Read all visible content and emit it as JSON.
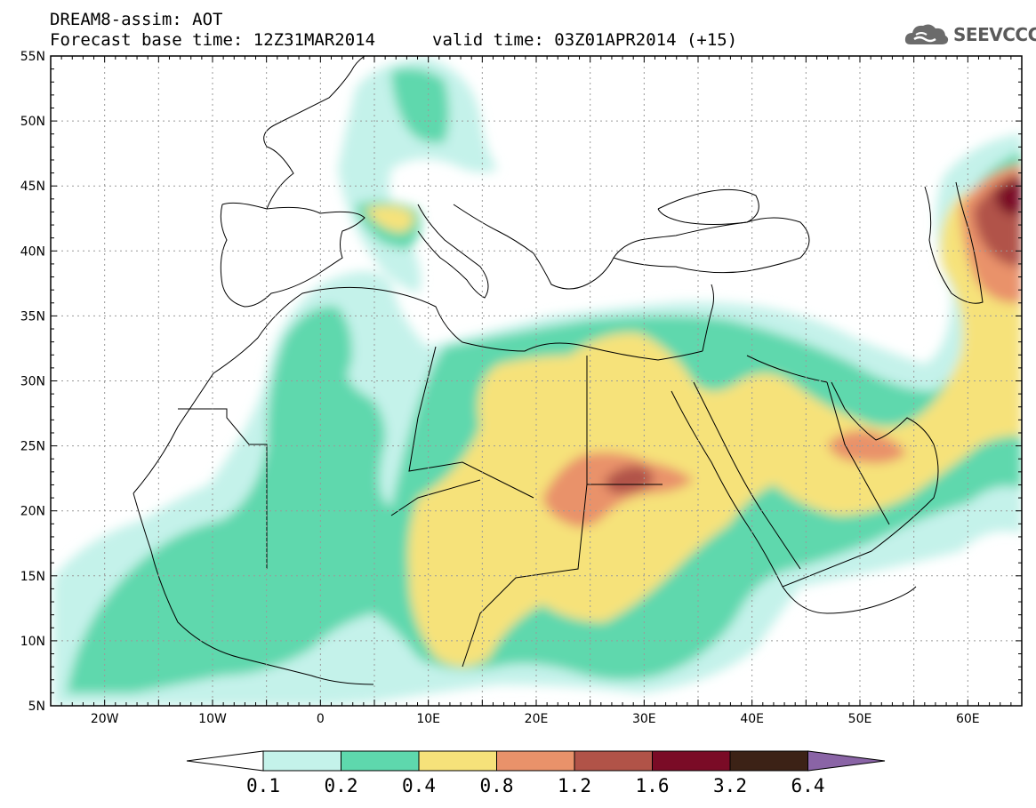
{
  "header": {
    "line1": "DREAM8-assim: AOT",
    "base_time": "Forecast base time: 12Z31MAR2014",
    "valid_time": "valid time: 03Z01APR2014 (+15)"
  },
  "logo": {
    "text": "SEEVCCC",
    "icon": "cloud-icon"
  },
  "map": {
    "lon_range": [
      -25,
      65
    ],
    "lat_range": [
      5,
      55
    ],
    "lat_labels": [
      "55N",
      "50N",
      "45N",
      "40N",
      "35N",
      "30N",
      "25N",
      "20N",
      "15N",
      "10N",
      "5N"
    ],
    "lat_values": [
      55,
      50,
      45,
      40,
      35,
      30,
      25,
      20,
      15,
      10,
      5
    ],
    "lon_labels": [
      "20W",
      "10W",
      "0",
      "10E",
      "20E",
      "30E",
      "40E",
      "50E",
      "60E"
    ],
    "lon_values": [
      -20,
      -10,
      0,
      10,
      20,
      30,
      40,
      50,
      60
    ]
  },
  "colorbar": {
    "labels": [
      "0.1",
      "0.2",
      "0.4",
      "0.8",
      "1.2",
      "1.6",
      "3.2",
      "6.4"
    ],
    "colors": [
      "#c4f2ea",
      "#5ed8ad",
      "#f6e27a",
      "#e9926a",
      "#b15348",
      "#7a0b26",
      "#3c2216",
      "#8a64a6"
    ],
    "under_color": "#ffffff"
  },
  "colors": {
    "background": "#ffffff",
    "coastline": "#000000"
  }
}
